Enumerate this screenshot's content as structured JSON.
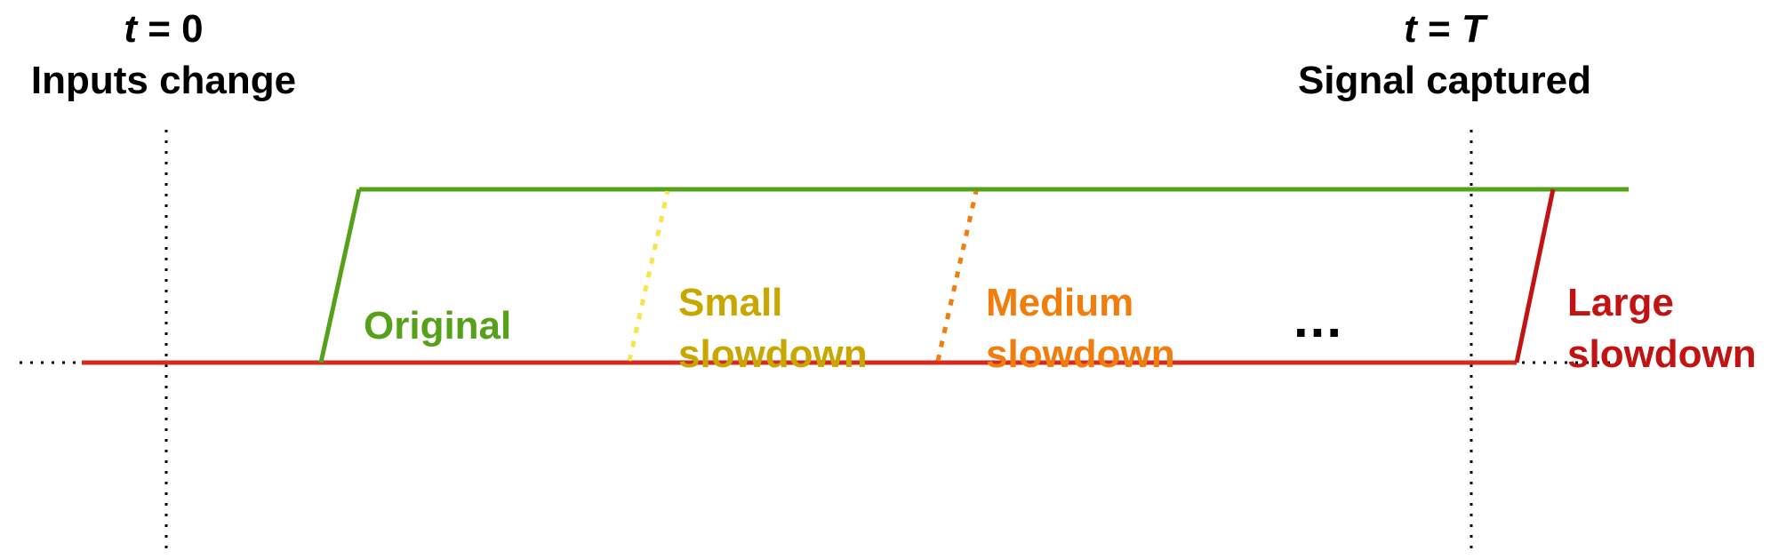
{
  "markers": {
    "start": {
      "time_var": "t",
      "time_eq": "= 0",
      "caption": "Inputs change"
    },
    "end": {
      "time_var": "t",
      "time_eq": "= ",
      "time_val": "T",
      "caption": "Signal captured"
    }
  },
  "transitions": {
    "original": {
      "label": "Original",
      "color": "#55a11a",
      "style": "solid"
    },
    "small": {
      "line1": "Small",
      "line2": "slowdown",
      "color": "#c8a800",
      "line_color": "#f7e54d",
      "style": "dotted"
    },
    "medium": {
      "line1": "Medium",
      "line2": "slowdown",
      "color": "#f07d0c",
      "line_color": "#f07d0c",
      "style": "dotted"
    },
    "large": {
      "line1": "Large",
      "line2": "slowdown",
      "color": "#c21212",
      "style": "solid"
    }
  },
  "ellipsis": "...",
  "colors": {
    "high_level": "#55a11a",
    "low_level": "#d42a1f",
    "marker_dots": "#000000"
  }
}
